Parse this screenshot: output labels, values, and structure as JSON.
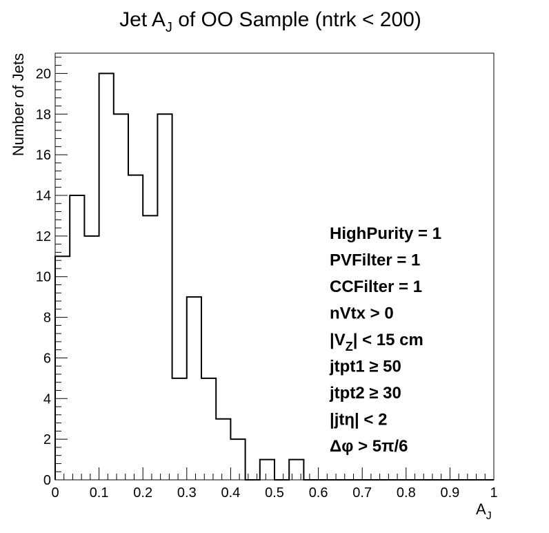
{
  "chart_data": {
    "type": "bar",
    "style": "step-histogram",
    "title": {
      "main": "Jet A",
      "sub": "J",
      "rest": " of OO Sample (ntrk < 200)"
    },
    "xlabel": {
      "main": "A",
      "sub": "J"
    },
    "ylabel": "Number of Jets",
    "xlim": [
      0,
      1
    ],
    "ylim": [
      0,
      21
    ],
    "x_ticks": [
      "0",
      "0.1",
      "0.2",
      "0.3",
      "0.4",
      "0.5",
      "0.6",
      "0.7",
      "0.8",
      "0.9",
      "1"
    ],
    "y_ticks": [
      "0",
      "2",
      "4",
      "6",
      "8",
      "10",
      "12",
      "14",
      "16",
      "18",
      "20"
    ],
    "bin_width": 0.0333,
    "bin_edges_start": 0,
    "values": [
      11,
      14,
      12,
      20,
      18,
      15,
      13,
      18,
      5,
      9,
      5,
      3,
      2,
      0,
      1,
      0,
      1,
      0,
      0,
      0,
      0,
      0,
      0,
      0,
      0,
      0,
      0,
      0,
      0,
      0
    ],
    "grid": false,
    "line_color": "#000000",
    "annotations": [
      {
        "id": "highpurity",
        "parts": [
          [
            "HighPurity = 1",
            ""
          ]
        ]
      },
      {
        "id": "pvfilter",
        "parts": [
          [
            "PVFilter = 1",
            ""
          ]
        ]
      },
      {
        "id": "ccfilter",
        "parts": [
          [
            "CCFilter = 1",
            ""
          ]
        ]
      },
      {
        "id": "nvtx",
        "parts": [
          [
            "nVtx > 0",
            ""
          ]
        ]
      },
      {
        "id": "vz",
        "parts": [
          [
            "|V",
            ""
          ],
          [
            "Z",
            "sub"
          ],
          [
            "| < 15 cm",
            ""
          ]
        ]
      },
      {
        "id": "jtpt1",
        "parts": [
          [
            "jtpt1 ≥ 50",
            ""
          ]
        ]
      },
      {
        "id": "jtpt2",
        "parts": [
          [
            "jtpt2 ≥ 30",
            ""
          ]
        ]
      },
      {
        "id": "jteta",
        "parts": [
          [
            "|jtη| < 2",
            ""
          ]
        ]
      },
      {
        "id": "dphi",
        "parts": [
          [
            "Δφ > 5π/6",
            ""
          ]
        ]
      }
    ]
  }
}
